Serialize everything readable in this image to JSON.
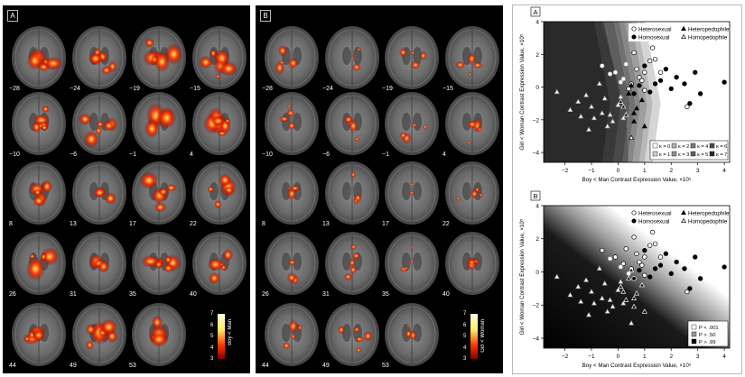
{
  "panel_a": {
    "letter": "A",
    "labels": [
      "−28",
      "−24",
      "−19",
      "−15",
      "−10",
      "−6",
      "−1",
      "4",
      "8",
      "13",
      "17",
      "22",
      "26",
      "31",
      "35",
      "40",
      "44",
      "49",
      "53"
    ],
    "colorbar": {
      "max": "7",
      "min": "3",
      "ticks": [
        "7",
        "6",
        "5",
        "4",
        "3"
      ],
      "title": "Boy < Man"
    }
  },
  "panel_b": {
    "letter": "B",
    "labels": [
      "−28",
      "−24",
      "−19",
      "−15",
      "−10",
      "−6",
      "−1",
      "4",
      "8",
      "13",
      "17",
      "22",
      "26",
      "31",
      "35",
      "40",
      "44",
      "49",
      "53"
    ],
    "colorbar": {
      "max": "7",
      "min": "3",
      "ticks": [
        "7",
        "6",
        "5",
        "4",
        "3"
      ],
      "title": "Girl < Woman"
    }
  },
  "colors": {
    "heat_low": "#7a0000",
    "heat_mid": "#ff3300",
    "heat_high": "#ffee66",
    "panel_bg": "#000000"
  },
  "chart_data": [
    {
      "type": "scatter",
      "panel_letter": "A",
      "xlabel": "Boy < Man Contrast Expression Value, ×10⁵",
      "ylabel": "Girl < Woman Contrast Expression Value, ×10⁵",
      "xlim": [
        -2.8,
        4.2
      ],
      "ylim": [
        -4.6,
        4.0
      ],
      "xticks": [
        "−2",
        "−1",
        "0",
        "1",
        "2",
        "3",
        "4"
      ],
      "yticks": [
        "4",
        "2",
        "0",
        "−2",
        "−4"
      ],
      "xtick_values": [
        -2,
        -1,
        0,
        1,
        2,
        3,
        4
      ],
      "ytick_values": [
        4,
        2,
        0,
        -2,
        -4
      ],
      "legend_groups": [
        {
          "label": "Heterosexual",
          "marker": "circle-open"
        },
        {
          "label": "Heteropedophile",
          "marker": "triangle-filled"
        },
        {
          "label": "Homosexual",
          "marker": "circle-filled"
        },
        {
          "label": "Homopedophile",
          "marker": "triangle-open"
        }
      ],
      "region_legend": [
        "κ = 0",
        "κ = 1",
        "κ = 2",
        "κ = 3",
        "κ = 4",
        "κ = 5",
        "κ = 6",
        "κ = 7"
      ],
      "series": [
        {
          "name": "Heterosexual",
          "marker": "circle-open",
          "points": [
            [
              -0.6,
              1.3
            ],
            [
              -0.3,
              0.8
            ],
            [
              0.2,
              0.5
            ],
            [
              0.5,
              0.2
            ],
            [
              0.6,
              2.1
            ],
            [
              0.8,
              0.6
            ],
            [
              1.0,
              0.9
            ],
            [
              1.2,
              1.6
            ],
            [
              1.4,
              1.7
            ],
            [
              1.3,
              2.4
            ],
            [
              1.6,
              0.9
            ],
            [
              1.0,
              -0.2
            ],
            [
              0.9,
              0.4
            ],
            [
              0.1,
              0.3
            ],
            [
              0.4,
              -0.1
            ],
            [
              2.6,
              -1.2
            ],
            [
              0.7,
              1.1
            ],
            [
              -0.1,
              0.9
            ],
            [
              0.3,
              1.4
            ]
          ]
        },
        {
          "name": "Homosexual",
          "marker": "circle-filled",
          "points": [
            [
              1.2,
              -0.3
            ],
            [
              1.6,
              0.4
            ],
            [
              1.8,
              1.1
            ],
            [
              2.2,
              0.6
            ],
            [
              2.5,
              0.2
            ],
            [
              2.7,
              -1.0
            ],
            [
              2.9,
              0.9
            ],
            [
              3.1,
              -0.4
            ],
            [
              4.0,
              0.3
            ],
            [
              0.8,
              0.1
            ],
            [
              1.0,
              1.3
            ],
            [
              0.6,
              -0.4
            ],
            [
              2.0,
              -0.1
            ],
            [
              1.4,
              0.2
            ]
          ]
        },
        {
          "name": "Heteropedophile",
          "marker": "triangle-filled",
          "points": [
            [
              0.2,
              -1.2
            ],
            [
              0.3,
              -1.7
            ],
            [
              0.4,
              -0.4
            ],
            [
              0.6,
              -2.1
            ],
            [
              0.7,
              -1.3
            ],
            [
              0.9,
              -0.8
            ],
            [
              0.5,
              0.1
            ],
            [
              1.0,
              -2.4
            ],
            [
              0.6,
              -1.6
            ],
            [
              0.1,
              -0.9
            ]
          ]
        },
        {
          "name": "Homopedophile",
          "marker": "triangle-open",
          "points": [
            [
              -2.3,
              -0.3
            ],
            [
              -1.8,
              -1.4
            ],
            [
              -1.4,
              -1.8
            ],
            [
              -1.2,
              -0.5
            ],
            [
              -1.0,
              -1.2
            ],
            [
              -0.9,
              -1.9
            ],
            [
              -0.6,
              -1.6
            ],
            [
              -0.5,
              -0.7
            ],
            [
              -0.3,
              -1.7
            ],
            [
              -0.2,
              -2.1
            ],
            [
              0.0,
              -1.1
            ],
            [
              0.2,
              -1.9
            ],
            [
              -0.7,
              0.2
            ],
            [
              -1.5,
              -0.9
            ],
            [
              0.5,
              -3.1
            ],
            [
              -0.4,
              -2.4
            ],
            [
              -1.1,
              -2.6
            ],
            [
              0.1,
              -0.6
            ]
          ]
        }
      ]
    },
    {
      "type": "scatter",
      "panel_letter": "B",
      "xlabel": "Boy < Man Contrast Expression Value, ×10⁵",
      "ylabel": "Girl < Woman Contrast Expression Value, ×10⁵",
      "xlim": [
        -2.8,
        4.2
      ],
      "ylim": [
        -4.6,
        4.0
      ],
      "xticks": [
        "−2",
        "−1",
        "0",
        "1",
        "2",
        "3",
        "4"
      ],
      "yticks": [
        "4",
        "2",
        "0",
        "−2",
        "−4"
      ],
      "xtick_values": [
        -2,
        -1,
        0,
        1,
        2,
        3,
        4
      ],
      "ytick_values": [
        4,
        2,
        0,
        -2,
        -4
      ],
      "legend_groups": [
        {
          "label": "Heterosexual",
          "marker": "circle-open"
        },
        {
          "label": "Heteropedophile",
          "marker": "triangle-filled"
        },
        {
          "label": "Homosexual",
          "marker": "circle-filled"
        },
        {
          "label": "Homopedophile",
          "marker": "triangle-open"
        }
      ],
      "region_legend": [
        "P < .001",
        "P > .50",
        "P > .99"
      ],
      "series": [
        {
          "name": "Heterosexual",
          "marker": "circle-open",
          "points": [
            [
              -0.6,
              1.3
            ],
            [
              -0.3,
              0.8
            ],
            [
              0.2,
              0.5
            ],
            [
              0.5,
              0.2
            ],
            [
              0.6,
              2.1
            ],
            [
              0.8,
              0.6
            ],
            [
              1.0,
              0.9
            ],
            [
              1.2,
              1.6
            ],
            [
              1.4,
              1.7
            ],
            [
              1.3,
              2.4
            ],
            [
              1.6,
              0.9
            ],
            [
              1.0,
              -0.2
            ],
            [
              0.9,
              0.4
            ],
            [
              0.1,
              0.3
            ],
            [
              0.4,
              -0.1
            ],
            [
              2.6,
              -1.2
            ],
            [
              0.7,
              1.1
            ],
            [
              -0.1,
              0.9
            ],
            [
              0.3,
              1.4
            ]
          ]
        },
        {
          "name": "Homosexual",
          "marker": "circle-filled",
          "points": [
            [
              1.2,
              -0.3
            ],
            [
              1.6,
              0.4
            ],
            [
              1.8,
              1.1
            ],
            [
              2.2,
              0.6
            ],
            [
              2.5,
              0.2
            ],
            [
              2.7,
              -1.0
            ],
            [
              2.9,
              0.9
            ],
            [
              3.1,
              -0.4
            ],
            [
              4.0,
              0.3
            ],
            [
              0.8,
              0.1
            ],
            [
              1.0,
              1.3
            ],
            [
              0.6,
              -0.4
            ],
            [
              2.0,
              -0.1
            ],
            [
              1.4,
              0.2
            ]
          ]
        },
        {
          "name": "Heteropedophile",
          "marker": "triangle-filled",
          "points": [
            [
              0.2,
              -1.2
            ],
            [
              0.3,
              -1.7
            ],
            [
              0.4,
              -0.4
            ],
            [
              0.6,
              -2.1
            ],
            [
              0.7,
              -1.3
            ],
            [
              0.9,
              -0.8
            ],
            [
              0.5,
              0.1
            ],
            [
              1.0,
              -2.4
            ],
            [
              0.6,
              -1.6
            ],
            [
              0.1,
              -0.9
            ]
          ]
        },
        {
          "name": "Homopedophile",
          "marker": "triangle-open",
          "points": [
            [
              -2.3,
              -0.3
            ],
            [
              -1.8,
              -1.4
            ],
            [
              -1.4,
              -1.8
            ],
            [
              -1.2,
              -0.5
            ],
            [
              -1.0,
              -1.2
            ],
            [
              -0.9,
              -1.9
            ],
            [
              -0.6,
              -1.6
            ],
            [
              -0.5,
              -0.7
            ],
            [
              -0.3,
              -1.7
            ],
            [
              -0.2,
              -2.1
            ],
            [
              0.0,
              -1.1
            ],
            [
              0.2,
              -1.9
            ],
            [
              -0.7,
              0.2
            ],
            [
              -1.5,
              -0.9
            ],
            [
              0.5,
              -3.1
            ],
            [
              -0.4,
              -2.4
            ],
            [
              -1.1,
              -2.6
            ],
            [
              0.1,
              -0.6
            ]
          ]
        }
      ]
    }
  ]
}
